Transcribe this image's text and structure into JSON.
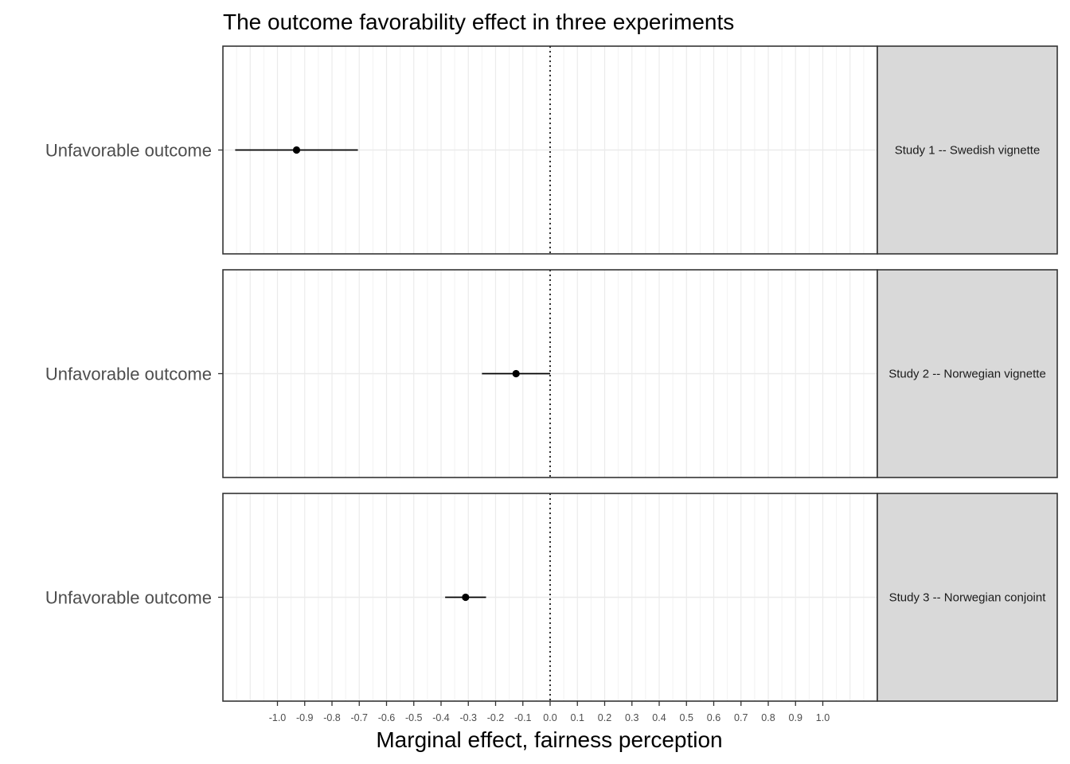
{
  "chart_data": {
    "type": "scatter",
    "title": "The outcome favorability effect in three experiments",
    "xlabel": "Marginal effect, fairness perception",
    "ylabel": "",
    "xlim": [
      -1.2,
      1.2
    ],
    "x_ticks": [
      "-1.0",
      "-0.9",
      "-0.8",
      "-0.7",
      "-0.6",
      "-0.5",
      "-0.4",
      "-0.3",
      "-0.2",
      "-0.1",
      "0.0",
      "0.1",
      "0.2",
      "0.3",
      "0.4",
      "0.5",
      "0.6",
      "0.7",
      "0.8",
      "0.9",
      "1.0"
    ],
    "reference_line": 0,
    "grid": true,
    "panels": [
      {
        "strip_label": "Study 1 -- Swedish vignette",
        "category": "Unfavorable outcome",
        "estimate": -0.93,
        "ci_low": -1.155,
        "ci_high": -0.705
      },
      {
        "strip_label": "Study 2 -- Norwegian vignette",
        "category": "Unfavorable outcome",
        "estimate": -0.125,
        "ci_low": -0.25,
        "ci_high": 0.0
      },
      {
        "strip_label": "Study 3 -- Norwegian conjoint",
        "category": "Unfavorable outcome",
        "estimate": -0.31,
        "ci_low": -0.385,
        "ci_high": -0.235
      }
    ]
  }
}
